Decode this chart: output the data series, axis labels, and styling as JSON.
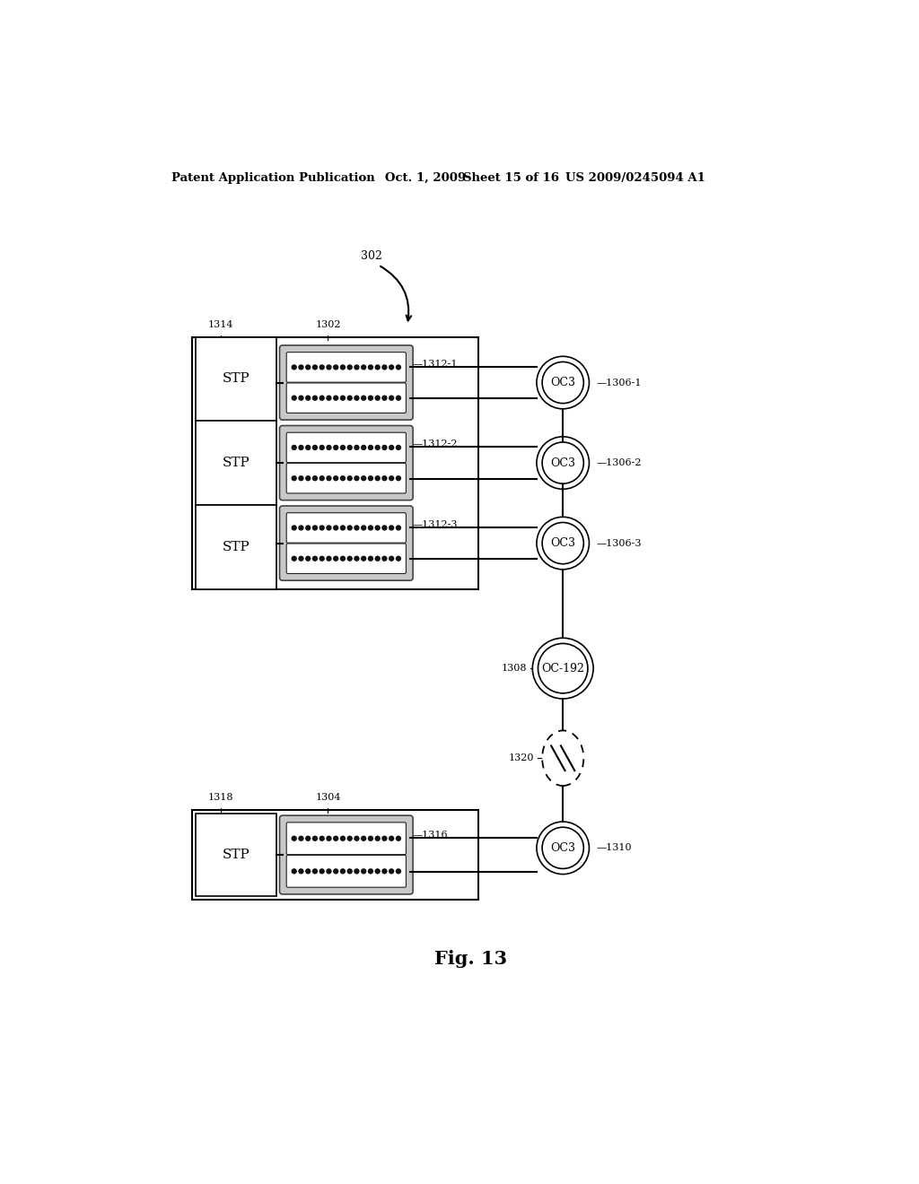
{
  "bg_color": "#ffffff",
  "header_text": "Patent Application Publication",
  "header_date": "Oct. 1, 2009",
  "header_sheet": "Sheet 15 of 16",
  "header_patent": "US 2009/0245094 A1",
  "fig_label": "Fig. 13",
  "arrow_label": "302"
}
